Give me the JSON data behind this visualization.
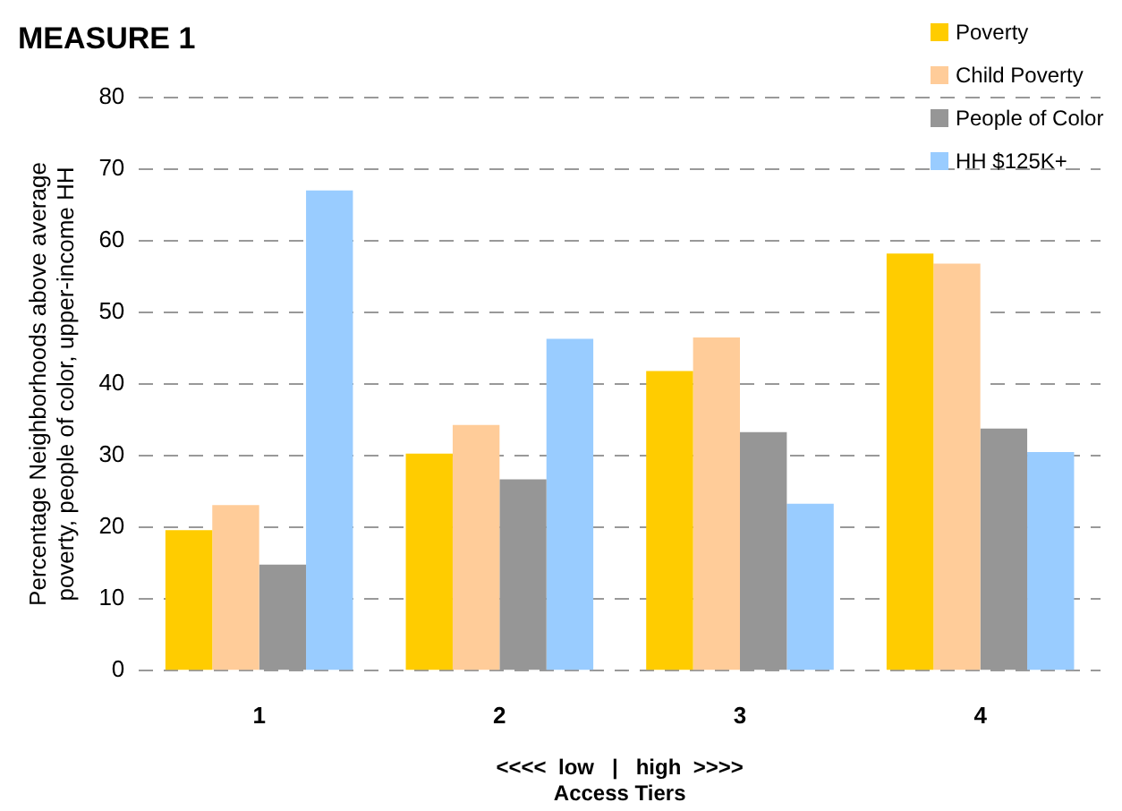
{
  "chart_data": {
    "type": "bar",
    "title": "MEASURE 1",
    "xlabel": "Access Tiers",
    "ylabel": "Percentage Neighborhoods above average poverty, people of color, upper-income HH",
    "annotations": [
      "<<<<  low   |   high  >>>>"
    ],
    "categories": [
      "1",
      "2",
      "3",
      "4"
    ],
    "series": [
      {
        "name": "Poverty",
        "color": "#ffcc00",
        "values": [
          19.6,
          30.3,
          41.8,
          58.2
        ]
      },
      {
        "name": "Child Poverty",
        "color": "#ffcc99",
        "values": [
          23.1,
          34.3,
          46.5,
          56.8
        ]
      },
      {
        "name": "People of Color",
        "color": "#969696",
        "values": [
          14.8,
          26.7,
          33.3,
          33.8
        ]
      },
      {
        "name": "HH $125K+",
        "color": "#99ccff",
        "values": [
          67.0,
          46.3,
          23.3,
          30.5
        ]
      }
    ],
    "ylim": [
      0,
      80
    ],
    "yticks": [
      0,
      10,
      20,
      30,
      40,
      50,
      60,
      70,
      80
    ],
    "grid": "y",
    "legend": "top right"
  }
}
